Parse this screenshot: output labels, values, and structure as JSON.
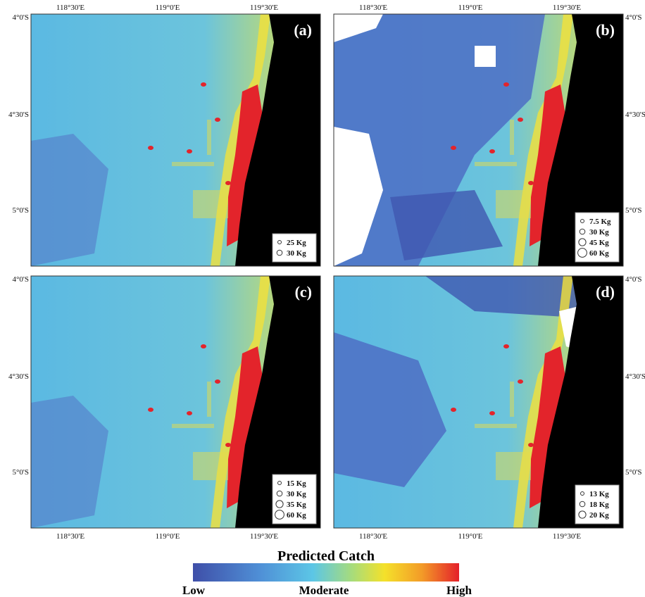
{
  "figure": {
    "axes": {
      "lon_labels": [
        "118°30'E",
        "119°0'E",
        "119°30'E"
      ],
      "lat_labels": [
        "4°0'S",
        "4°30'S",
        "5°0'S"
      ]
    },
    "panels": [
      {
        "label": "(a)",
        "legend": [
          "25 Kg",
          "30 Kg"
        ]
      },
      {
        "label": "(b)",
        "legend": [
          "7.5 Kg",
          "30 Kg",
          "45 Kg",
          "60 Kg"
        ]
      },
      {
        "label": "(c)",
        "legend": [
          "15 Kg",
          "30 Kg",
          "35 Kg",
          "60 Kg"
        ]
      },
      {
        "label": "(d)",
        "legend": [
          "13 Kg",
          "18 Kg",
          "20 Kg"
        ]
      }
    ],
    "colorbar": {
      "title": "Predicted Catch",
      "labels": [
        "Low",
        "Moderate",
        "High"
      ]
    }
  }
}
